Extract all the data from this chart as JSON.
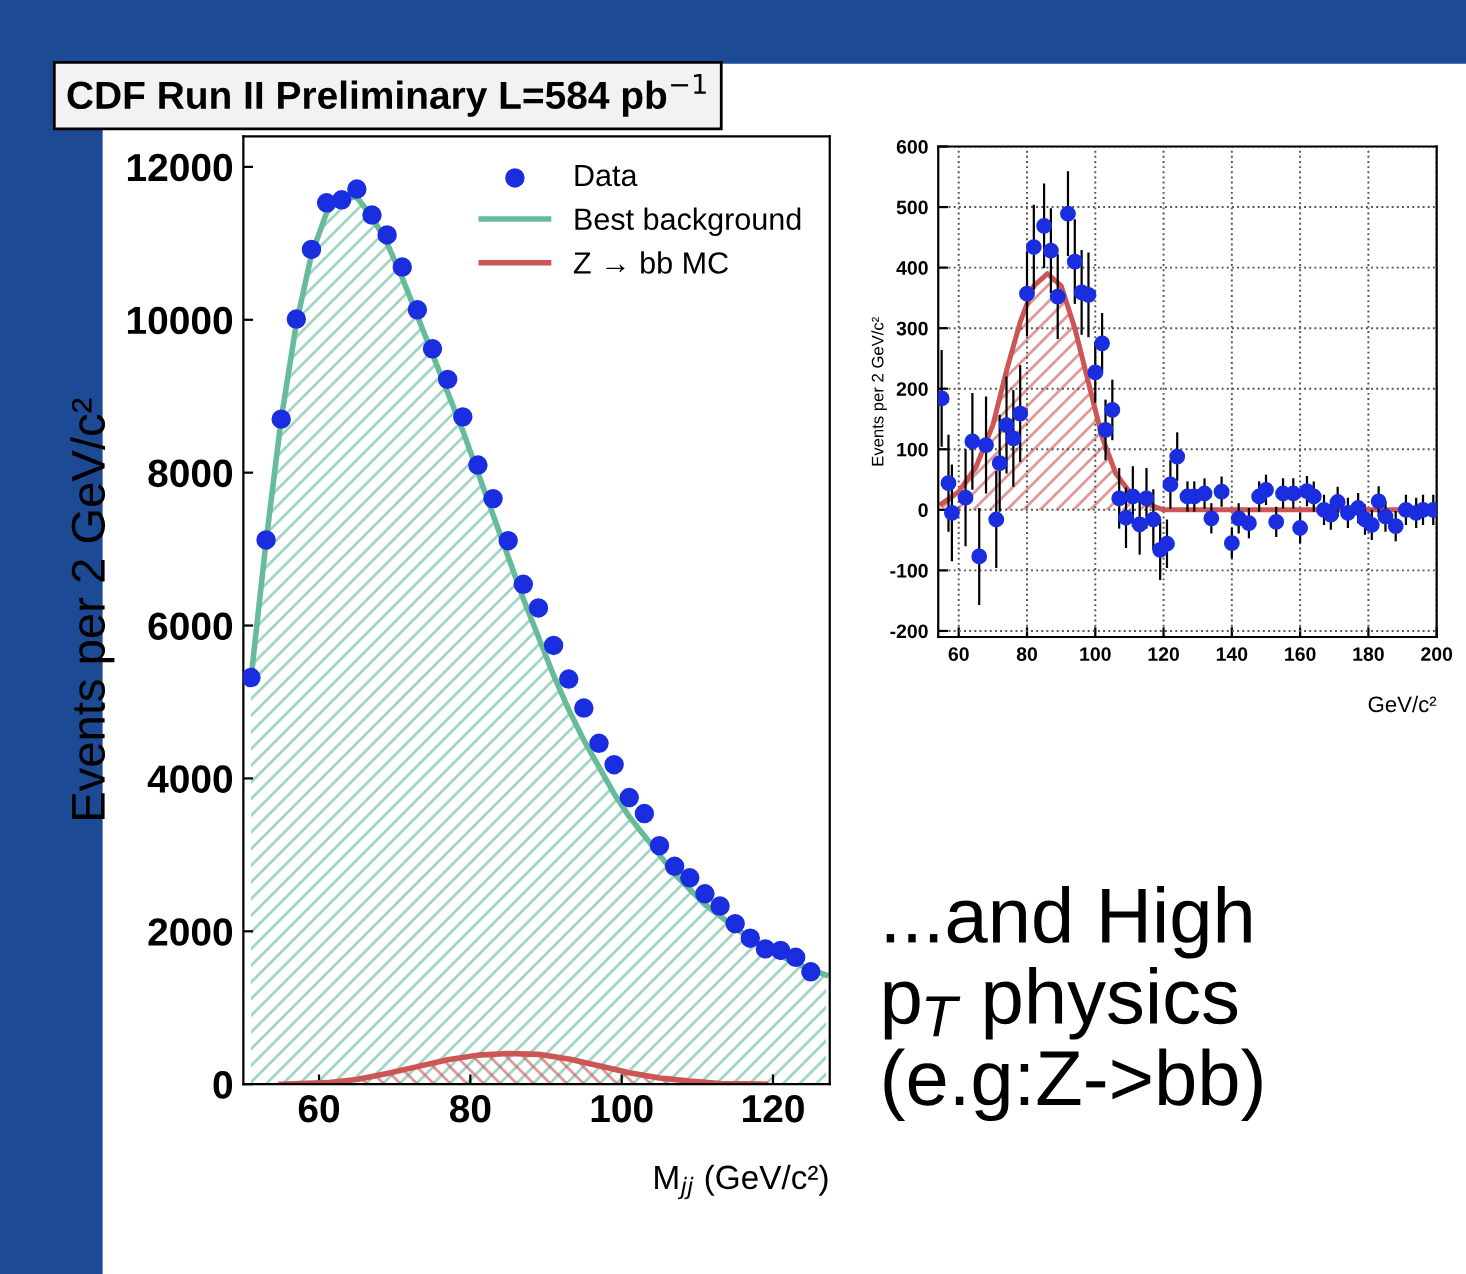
{
  "chart_data": [
    {
      "type": "scatter",
      "title": "CDF Run II Preliminary L=584 pb$^{−1}$",
      "ylabel": "Events per 2 GeV/c²",
      "xlabel": "M$_{jj}$ (GeV/c²)",
      "annotations": [
        "...and High\np$_{T}$ physics\n(e.g:Z->bb)"
      ],
      "xlim": [
        50,
        127.5
      ],
      "xticks": [
        60,
        80,
        100,
        120
      ],
      "ylim": [
        0,
        12400
      ],
      "yticks": [
        0,
        2000,
        4000,
        6000,
        8000,
        10000,
        12000
      ],
      "legend": "top right",
      "grid": false,
      "series": [
        {
          "name": "Best background",
          "type": "area",
          "color": "#66bb99",
          "x": [
            51,
            53,
            55,
            57,
            59,
            61,
            63,
            65,
            67,
            69,
            71,
            73,
            75,
            77,
            79,
            81,
            83,
            85,
            87,
            89,
            91,
            93,
            95,
            97,
            99,
            101,
            103,
            105,
            107,
            109,
            111,
            113,
            115,
            117,
            119,
            121,
            123,
            125,
            127
          ],
          "values": [
            5300,
            7100,
            8700,
            9950,
            10850,
            11400,
            11600,
            11600,
            11350,
            11000,
            10550,
            10050,
            9550,
            9050,
            8550,
            8000,
            7450,
            6900,
            6350,
            5850,
            5350,
            4900,
            4500,
            4150,
            3800,
            3500,
            3250,
            3000,
            2750,
            2550,
            2350,
            2200,
            2050,
            1900,
            1780,
            1680,
            1580,
            1500,
            1430
          ]
        },
        {
          "name": "Z → bb MC",
          "type": "area",
          "color": "#cc5555",
          "x": [
            55,
            61,
            65,
            69,
            73,
            77,
            81,
            85,
            89,
            93,
            97,
            101,
            105,
            109,
            113,
            119
          ],
          "values": [
            0,
            20,
            60,
            140,
            230,
            320,
            380,
            400,
            390,
            330,
            240,
            150,
            80,
            40,
            10,
            0
          ]
        },
        {
          "name": "Data",
          "color": "#1a2ee0",
          "marker": "circle",
          "x": [
            51,
            53,
            55,
            57,
            59,
            61,
            63,
            65,
            67,
            69,
            71,
            73,
            75,
            77,
            79,
            81,
            83,
            85,
            87,
            89,
            91,
            93,
            95,
            97,
            99,
            101,
            103,
            105,
            107,
            109,
            111,
            113,
            115,
            117,
            119,
            121,
            123,
            125
          ],
          "values": [
            5320,
            7120,
            8700,
            10010,
            10920,
            11530,
            11570,
            11710,
            11370,
            11110,
            10690,
            10130,
            9620,
            9220,
            8730,
            8100,
            7660,
            7110,
            6540,
            6230,
            5740,
            5300,
            4920,
            4460,
            4180,
            3750,
            3540,
            3120,
            2850,
            2700,
            2490,
            2330,
            2100,
            1910,
            1770,
            1750,
            1660,
            1470
          ]
        }
      ]
    },
    {
      "type": "scatter",
      "ylabel": "Events per 2 GeV/c²",
      "xlabel": "GeV/c²",
      "xlim": [
        54,
        200
      ],
      "xticks": [
        60,
        80,
        100,
        120,
        140,
        160,
        180,
        200
      ],
      "ylim": [
        -210,
        600
      ],
      "yticks": [
        -200,
        -100,
        0,
        100,
        200,
        300,
        400,
        500,
        600
      ],
      "grid": true,
      "line_style": "dotted",
      "series": [
        {
          "type": "area",
          "color": "#cc5555",
          "x": [
            55,
            60,
            65,
            70,
            74,
            78,
            82,
            86,
            90,
            94,
            98,
            102,
            106,
            110,
            115,
            120,
            130,
            200
          ],
          "values": [
            10,
            30,
            70,
            140,
            230,
            310,
            370,
            390,
            370,
            300,
            210,
            120,
            60,
            30,
            10,
            0,
            0,
            0
          ]
        },
        {
          "color": "#1a2ee0",
          "marker": "circle",
          "x": [
            55,
            57,
            58,
            62,
            64,
            66,
            68,
            71,
            72,
            74,
            76,
            78,
            80,
            82,
            85,
            87,
            89,
            92,
            94,
            96,
            98,
            100,
            102,
            103,
            105,
            107,
            109,
            111,
            113,
            115,
            117,
            119,
            121,
            122,
            124,
            127,
            129,
            132,
            134,
            137,
            140,
            142,
            145,
            148,
            150,
            153,
            155,
            158,
            160,
            162,
            164,
            167,
            169,
            171,
            174,
            177,
            179,
            181,
            183,
            185,
            188,
            191,
            194,
            196,
            199
          ],
          "values": [
            184,
            44,
            -5,
            20,
            113,
            -77,
            107,
            -16,
            77,
            140,
            118,
            159,
            357,
            434,
            469,
            428,
            352,
            489,
            410,
            359,
            355,
            227,
            275,
            132,
            165,
            19,
            -13,
            22,
            -24,
            19,
            -16,
            -66,
            -56,
            42,
            88,
            22,
            22,
            27,
            -14,
            30,
            -55,
            -14,
            -22,
            22,
            33,
            -20,
            27,
            27,
            -30,
            31,
            22,
            0,
            -8,
            13,
            -5,
            3,
            -16,
            -25,
            14,
            -11,
            -27,
            0,
            -5,
            0,
            0
          ],
          "errors": [
            80,
            80,
            80,
            80,
            80,
            80,
            80,
            80,
            80,
            80,
            80,
            80,
            70,
            70,
            70,
            70,
            70,
            70,
            70,
            70,
            70,
            50,
            50,
            50,
            50,
            50,
            50,
            50,
            50,
            50,
            50,
            50,
            40,
            40,
            40,
            25,
            25,
            25,
            25,
            25,
            25,
            25,
            25,
            25,
            25,
            25,
            25,
            25,
            25,
            25,
            25,
            25,
            25,
            25,
            25,
            25,
            25,
            25,
            25,
            25,
            25,
            25,
            25,
            25,
            25
          ]
        }
      ]
    }
  ]
}
